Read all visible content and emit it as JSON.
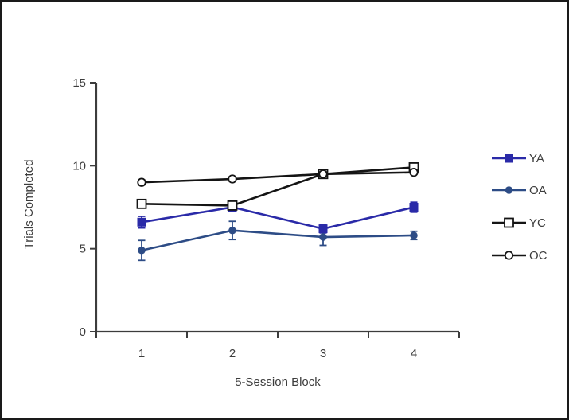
{
  "figure": {
    "background": "#ffffff",
    "border_color": "#1a1a1a",
    "axis_color": "#3c3c3c",
    "text_color": "#3c3c3c"
  },
  "chart_data": {
    "type": "line",
    "title": "",
    "xlabel": "5-Session Block",
    "ylabel": "Trials Completed",
    "categories": [
      "1",
      "2",
      "3",
      "4"
    ],
    "ylim": [
      0,
      15
    ],
    "yticks": [
      0,
      5,
      10,
      15
    ],
    "grid": false,
    "legend_position": "right",
    "series": [
      {
        "name": "YA",
        "color": "#2A2AA8",
        "marker": "square",
        "fill": "solid",
        "values": [
          6.6,
          7.5,
          6.2,
          7.5
        ],
        "errors": [
          0.35,
          0.15,
          0.25,
          0.3
        ]
      },
      {
        "name": "OA",
        "color": "#2D4C86",
        "marker": "circle",
        "fill": "solid",
        "values": [
          4.9,
          6.1,
          5.7,
          5.8
        ],
        "errors": [
          0.6,
          0.55,
          0.5,
          0.25
        ]
      },
      {
        "name": "YC",
        "color": "#141414",
        "marker": "square",
        "fill": "open",
        "values": [
          7.7,
          7.6,
          9.5,
          9.9
        ],
        "errors": [
          0.2,
          0.2,
          0.15,
          0.25
        ]
      },
      {
        "name": "OC",
        "color": "#141414",
        "marker": "circle",
        "fill": "open",
        "values": [
          9.0,
          9.2,
          9.5,
          9.6
        ],
        "errors": [
          0.15,
          0.15,
          0.1,
          0.1
        ]
      }
    ]
  }
}
